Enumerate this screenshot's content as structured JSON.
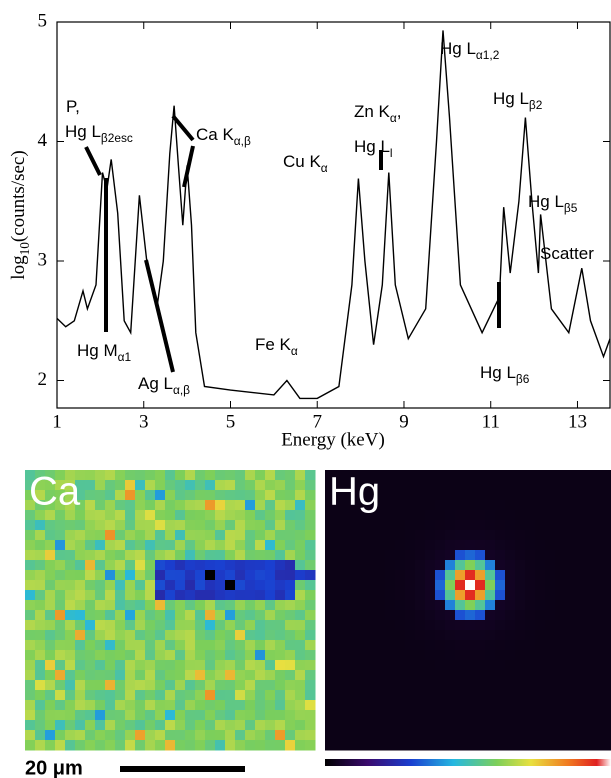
{
  "chart_data": {
    "type": "line",
    "xlabel": "Energy (keV)",
    "ylabel": {
      "text": "log",
      "sub": "10",
      "after": "(counts/sec)"
    },
    "xlim": [
      1,
      13.75
    ],
    "ylim": [
      1.77,
      5
    ],
    "xticks": [
      1,
      3,
      5,
      7,
      9,
      11,
      13
    ],
    "yticks": [
      2,
      3,
      4,
      5
    ],
    "x": [
      1.0,
      1.2,
      1.4,
      1.6,
      1.7,
      1.9,
      2.05,
      2.15,
      2.25,
      2.4,
      2.55,
      2.7,
      2.9,
      3.1,
      3.3,
      3.45,
      3.6,
      3.7,
      3.8,
      3.9,
      4.0,
      4.1,
      4.2,
      4.4,
      5.0,
      6.0,
      6.3,
      6.6,
      7.0,
      7.5,
      7.8,
      7.95,
      8.1,
      8.3,
      8.5,
      8.65,
      8.8,
      9.1,
      9.5,
      9.75,
      9.9,
      10.05,
      10.3,
      10.8,
      11.2,
      11.3,
      11.45,
      11.65,
      11.8,
      11.95,
      12.1,
      12.15,
      12.4,
      12.8,
      13.1,
      13.3,
      13.6,
      13.75
    ],
    "series": [
      {
        "color": "#000000",
        "values": [
          2.52,
          2.45,
          2.5,
          2.75,
          2.6,
          2.8,
          3.74,
          3.6,
          3.85,
          3.4,
          2.5,
          2.4,
          3.55,
          2.9,
          2.6,
          3.0,
          3.9,
          4.3,
          3.8,
          3.3,
          3.8,
          3.3,
          2.4,
          1.95,
          1.92,
          1.88,
          2.0,
          1.85,
          1.85,
          1.95,
          2.8,
          3.69,
          3.0,
          2.3,
          2.8,
          3.74,
          2.8,
          2.35,
          2.6,
          4.0,
          4.93,
          4.2,
          2.8,
          2.4,
          2.7,
          3.45,
          2.9,
          3.5,
          4.2,
          3.5,
          2.9,
          3.39,
          2.6,
          2.4,
          2.94,
          2.5,
          2.2,
          2.35
        ]
      }
    ],
    "annotations": [
      {
        "text": "P,"
      },
      {
        "text": "Hg L",
        "sub": "β2esc"
      },
      {
        "text": "Ca K",
        "sub": "α,β"
      },
      {
        "text": "Cu K",
        "sub": "α"
      },
      {
        "text": "Zn K",
        "sub": "α",
        "after": ","
      },
      {
        "text": "Hg L",
        "sub": "l"
      },
      {
        "text": "Hg L",
        "sub": "α1,2"
      },
      {
        "text": "Hg L",
        "sub": "β2"
      },
      {
        "text": "Hg L",
        "sub": "β5"
      },
      {
        "text": "Scatter"
      },
      {
        "text": "Hg M",
        "sub": "α1"
      },
      {
        "text": "Fe K",
        "sub": "α"
      },
      {
        "text": "Ag L",
        "sub": "α,β"
      },
      {
        "text": "Hg L",
        "sub": "β6"
      }
    ]
  },
  "maps": [
    {
      "label": "Ca"
    },
    {
      "label": "Hg"
    }
  ],
  "scale_bar": {
    "label": "20 μm"
  }
}
